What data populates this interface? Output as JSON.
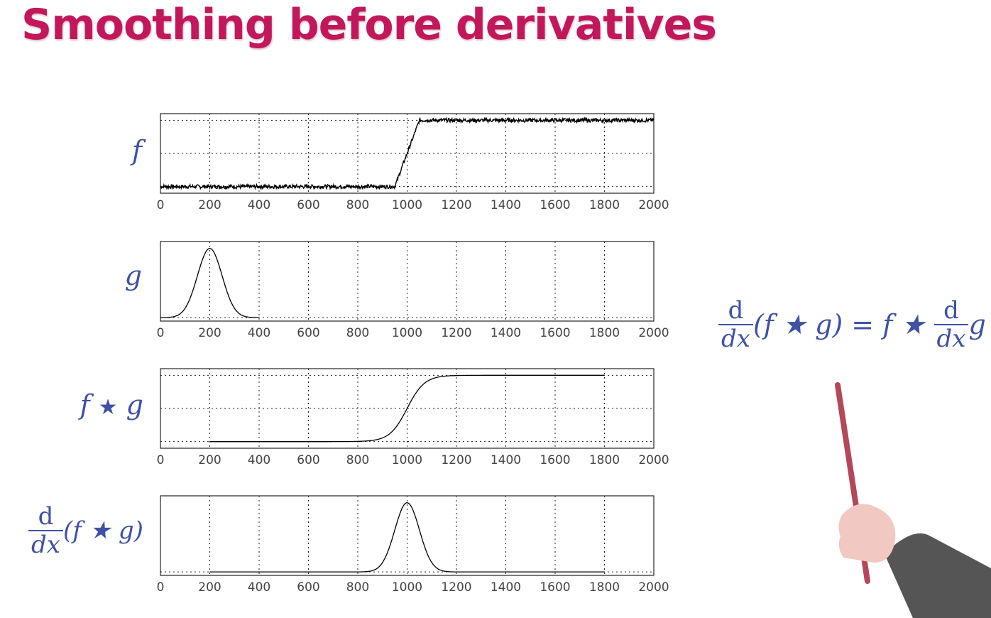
{
  "slide": {
    "title": "Smoothing before derivatives"
  },
  "labels": {
    "f": "f",
    "g": "g",
    "fg_f": "f",
    "star": "★",
    "fg_g": "g",
    "deriv_num": "d",
    "deriv_den": "dx",
    "deriv_expr": "(f ★ g)"
  },
  "formula": {
    "lhs_num": "d",
    "lhs_den": "dx",
    "lhs_expr": "(f ★ g) = f ★",
    "rhs_num": "d",
    "rhs_den": "dx",
    "rhs_expr": "g"
  },
  "colors": {
    "title": "#c2185b",
    "math": "#3f51a5",
    "pointer": "#b5475a",
    "hand": "#f1c9c2",
    "sleeve": "#555555"
  },
  "chart_data": [
    {
      "type": "line",
      "series": [
        {
          "name": "f",
          "x": [
            0,
            950,
            1000,
            1050,
            2000
          ],
          "y": [
            0,
            0,
            0.5,
            1,
            1
          ],
          "noise": 0.03
        }
      ],
      "xlim": [
        0,
        2000
      ],
      "ylim": [
        -0.1,
        1.1
      ],
      "xticks": [
        0,
        200,
        400,
        600,
        800,
        1000,
        1200,
        1400,
        1600,
        1800,
        2000
      ],
      "grid": true
    },
    {
      "type": "line",
      "series": [
        {
          "name": "g",
          "gaussian": {
            "mu": 200,
            "sigma": 50,
            "xmin": 0,
            "xmax": 400,
            "amp": 1
          }
        }
      ],
      "xlim": [
        0,
        2000
      ],
      "ylim": [
        -0.05,
        1.1
      ],
      "xticks": [
        0,
        200,
        400,
        600,
        800,
        1000,
        1200,
        1400,
        1600,
        1800,
        2000
      ],
      "grid": true
    },
    {
      "type": "line",
      "series": [
        {
          "name": "f ★ g",
          "sigmoid": {
            "mu": 1000,
            "sigma": 50,
            "xmin": 200,
            "xmax": 1800
          }
        }
      ],
      "xlim": [
        0,
        2000
      ],
      "ylim": [
        -0.1,
        1.1
      ],
      "xticks": [
        0,
        200,
        400,
        600,
        800,
        1000,
        1200,
        1400,
        1600,
        1800,
        2000
      ],
      "grid": true
    },
    {
      "type": "line",
      "series": [
        {
          "name": "d/dx (f ★ g)",
          "gaussian": {
            "mu": 1000,
            "sigma": 50,
            "xmin": 200,
            "xmax": 1800,
            "amp": 1
          }
        }
      ],
      "xlim": [
        0,
        2000
      ],
      "ylim": [
        -0.05,
        1.1
      ],
      "xticks": [
        0,
        200,
        400,
        600,
        800,
        1000,
        1200,
        1400,
        1600,
        1800,
        2000
      ],
      "grid": true
    }
  ]
}
